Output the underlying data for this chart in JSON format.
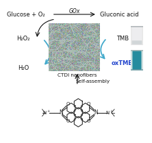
{
  "bg_color": "#ffffff",
  "top_left_text": "Glucose + O₂",
  "top_right_text": "Gluconic acid",
  "top_enzyme": "GOx",
  "left_top_text": "H₂O₂",
  "left_bot_text": "H₂O",
  "right_top_text": "TMB",
  "right_bot_text": "oxTMB",
  "right_bot_color": "#2244cc",
  "center_label": "CTDI nanofibers",
  "bottom_label": "Self-assembly",
  "arrow_color_black": "#111111",
  "arrow_color_cyan": "#44aacc",
  "sem_color_base": [
    0.58,
    0.65,
    0.63
  ],
  "sem_color_fiber": [
    0.7,
    0.76,
    0.74
  ]
}
